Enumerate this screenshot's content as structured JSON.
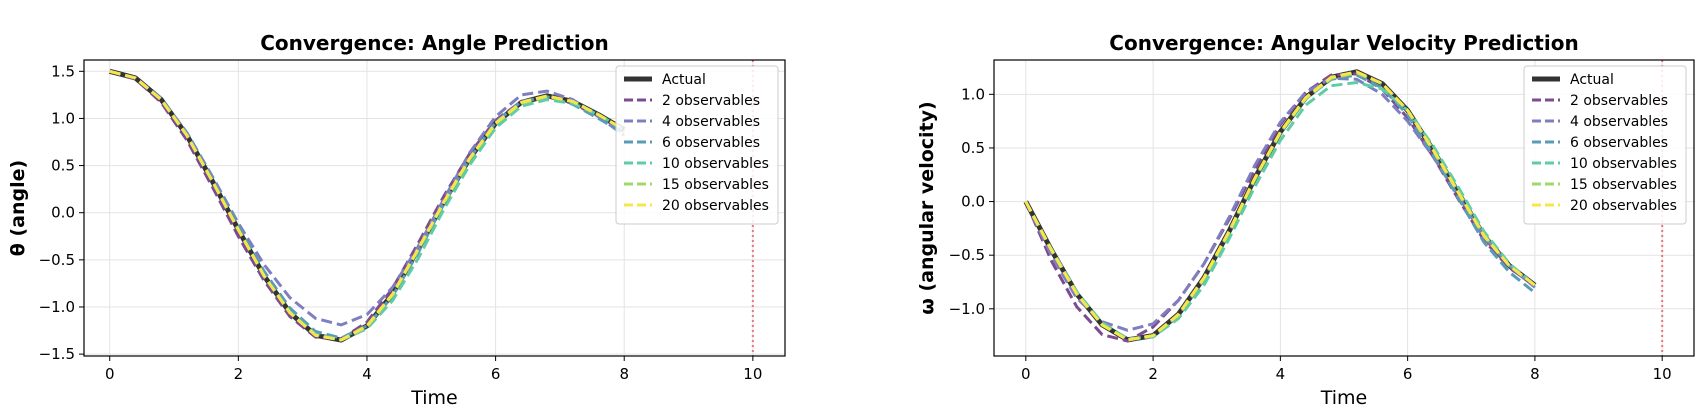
{
  "chart_data": [
    {
      "type": "line",
      "title": "Convergence: Angle Prediction",
      "xlabel": "Time",
      "ylabel": "θ (angle)",
      "xlim": [
        -0.4,
        10.5
      ],
      "ylim": [
        -1.52,
        1.62
      ],
      "xticks": [
        0,
        2,
        4,
        6,
        8,
        10
      ],
      "xtick_labels": [
        "0",
        "2",
        "4",
        "6",
        "8",
        "10"
      ],
      "yticks": [
        -1.5,
        -1.0,
        -0.5,
        0.0,
        0.5,
        1.0,
        1.5
      ],
      "ytick_labels": [
        "−1.5",
        "−1.0",
        "−0.5",
        "0.0",
        "0.5",
        "1.0",
        "1.5"
      ],
      "grid": true,
      "legend_position": "top-right",
      "vline": {
        "x": 10,
        "color": "#e8787a",
        "style": "dotted"
      },
      "x": [
        0,
        0.4,
        0.8,
        1.2,
        1.6,
        2.0,
        2.4,
        2.8,
        3.2,
        3.6,
        4.0,
        4.4,
        4.8,
        5.2,
        5.6,
        6.0,
        6.4,
        6.8,
        7.2,
        7.6,
        8.0
      ],
      "series": [
        {
          "name": "Actual",
          "color": "#333333",
          "dashed": false,
          "values": [
            1.5,
            1.43,
            1.2,
            0.82,
            0.33,
            -0.18,
            -0.67,
            -1.06,
            -1.3,
            -1.35,
            -1.2,
            -0.86,
            -0.38,
            0.12,
            0.58,
            0.95,
            1.17,
            1.24,
            1.18,
            1.04,
            0.88
          ]
        },
        {
          "name": "2 observables",
          "color": "#7b4b94",
          "dashed": true,
          "values": [
            1.5,
            1.42,
            1.17,
            0.77,
            0.27,
            -0.25,
            -0.72,
            -1.1,
            -1.32,
            -1.34,
            -1.16,
            -0.8,
            -0.32,
            0.18,
            0.63,
            0.98,
            1.18,
            1.23,
            1.16,
            1.02,
            0.86
          ]
        },
        {
          "name": "4 observables",
          "color": "#7f7fbf",
          "dashed": true,
          "values": [
            1.5,
            1.43,
            1.21,
            0.85,
            0.38,
            -0.11,
            -0.55,
            -0.9,
            -1.12,
            -1.19,
            -1.08,
            -0.79,
            -0.36,
            0.15,
            0.64,
            1.02,
            1.25,
            1.29,
            1.2,
            1.02,
            0.82
          ]
        },
        {
          "name": "6 observables",
          "color": "#5a9bb8",
          "dashed": true,
          "values": [
            1.5,
            1.43,
            1.21,
            0.84,
            0.36,
            -0.14,
            -0.62,
            -1.01,
            -1.26,
            -1.33,
            -1.2,
            -0.88,
            -0.42,
            0.1,
            0.58,
            0.96,
            1.18,
            1.23,
            1.15,
            1.0,
            0.84
          ]
        },
        {
          "name": "10 observables",
          "color": "#5ecca6",
          "dashed": true,
          "values": [
            1.5,
            1.43,
            1.2,
            0.82,
            0.33,
            -0.18,
            -0.67,
            -1.05,
            -1.29,
            -1.35,
            -1.23,
            -0.93,
            -0.48,
            0.04,
            0.51,
            0.9,
            1.13,
            1.2,
            1.16,
            1.04,
            0.88
          ]
        },
        {
          "name": "15 observables",
          "color": "#a0d96a",
          "dashed": true,
          "values": [
            1.5,
            1.43,
            1.2,
            0.82,
            0.33,
            -0.18,
            -0.67,
            -1.06,
            -1.3,
            -1.35,
            -1.21,
            -0.87,
            -0.39,
            0.11,
            0.57,
            0.94,
            1.16,
            1.23,
            1.18,
            1.04,
            0.88
          ]
        },
        {
          "name": "20 observables",
          "color": "#f7e54a",
          "dashed": true,
          "values": [
            1.5,
            1.43,
            1.2,
            0.82,
            0.33,
            -0.18,
            -0.67,
            -1.06,
            -1.3,
            -1.35,
            -1.2,
            -0.86,
            -0.38,
            0.12,
            0.58,
            0.95,
            1.17,
            1.24,
            1.18,
            1.04,
            0.88
          ]
        }
      ]
    },
    {
      "type": "line",
      "title": "Convergence: Angular Velocity Prediction",
      "xlabel": "Time",
      "ylabel": "ω (angular velocity)",
      "xlim": [
        -0.5,
        10.5
      ],
      "ylim": [
        -1.44,
        1.32
      ],
      "xticks": [
        0,
        2,
        4,
        6,
        8,
        10
      ],
      "xtick_labels": [
        "0",
        "2",
        "4",
        "6",
        "8",
        "10"
      ],
      "yticks": [
        -1.0,
        -0.5,
        0.0,
        0.5,
        1.0
      ],
      "ytick_labels": [
        "−1.0",
        "−0.5",
        "0.0",
        "0.5",
        "1.0"
      ],
      "grid": true,
      "legend_position": "top-right",
      "vline": {
        "x": 10,
        "color": "#e8787a",
        "style": "dotted"
      },
      "x": [
        0,
        0.4,
        0.8,
        1.2,
        1.6,
        2.0,
        2.4,
        2.8,
        3.2,
        3.6,
        4.0,
        4.4,
        4.8,
        5.2,
        5.6,
        6.0,
        6.4,
        6.8,
        7.2,
        7.6,
        8.0
      ],
      "series": [
        {
          "name": "Actual",
          "color": "#333333",
          "dashed": false,
          "values": [
            0.0,
            -0.45,
            -0.86,
            -1.15,
            -1.29,
            -1.25,
            -1.05,
            -0.71,
            -0.27,
            0.22,
            0.65,
            0.97,
            1.16,
            1.21,
            1.1,
            0.85,
            0.48,
            0.08,
            -0.32,
            -0.6,
            -0.78
          ]
        },
        {
          "name": "2 observables",
          "color": "#7b4b94",
          "dashed": true,
          "values": [
            0.0,
            -0.55,
            -0.98,
            -1.24,
            -1.3,
            -1.17,
            -0.92,
            -0.58,
            -0.16,
            0.3,
            0.72,
            1.02,
            1.18,
            1.19,
            1.05,
            0.78,
            0.42,
            0.02,
            -0.36,
            -0.62,
            -0.78
          ]
        },
        {
          "name": "4 observables",
          "color": "#7f7fbf",
          "dashed": true,
          "values": [
            0.0,
            -0.5,
            -0.9,
            -1.12,
            -1.2,
            -1.14,
            -0.92,
            -0.58,
            -0.14,
            0.34,
            0.74,
            1.02,
            1.15,
            1.14,
            1.0,
            0.75,
            0.42,
            0.05,
            -0.33,
            -0.6,
            -0.8
          ]
        },
        {
          "name": "6 observables",
          "color": "#5a9bb8",
          "dashed": true,
          "values": [
            0.0,
            -0.45,
            -0.86,
            -1.15,
            -1.29,
            -1.26,
            -1.07,
            -0.73,
            -0.28,
            0.21,
            0.64,
            0.96,
            1.14,
            1.18,
            1.06,
            0.81,
            0.44,
            0.03,
            -0.38,
            -0.66,
            -0.85
          ]
        },
        {
          "name": "10 observables",
          "color": "#5ecca6",
          "dashed": true,
          "values": [
            0.0,
            -0.44,
            -0.84,
            -1.13,
            -1.28,
            -1.26,
            -1.09,
            -0.78,
            -0.34,
            0.14,
            0.57,
            0.9,
            1.08,
            1.11,
            1.05,
            0.85,
            0.52,
            0.13,
            -0.28,
            -0.58,
            -0.78
          ]
        },
        {
          "name": "15 observables",
          "color": "#a0d96a",
          "dashed": true,
          "values": [
            0.0,
            -0.45,
            -0.86,
            -1.15,
            -1.29,
            -1.25,
            -1.06,
            -0.72,
            -0.28,
            0.21,
            0.64,
            0.96,
            1.15,
            1.2,
            1.1,
            0.85,
            0.49,
            0.09,
            -0.31,
            -0.6,
            -0.78
          ]
        },
        {
          "name": "20 observables",
          "color": "#f7e54a",
          "dashed": true,
          "values": [
            0.0,
            -0.45,
            -0.86,
            -1.15,
            -1.29,
            -1.25,
            -1.05,
            -0.71,
            -0.27,
            0.22,
            0.65,
            0.97,
            1.16,
            1.21,
            1.1,
            0.85,
            0.48,
            0.08,
            -0.32,
            -0.6,
            -0.78
          ]
        }
      ]
    }
  ]
}
